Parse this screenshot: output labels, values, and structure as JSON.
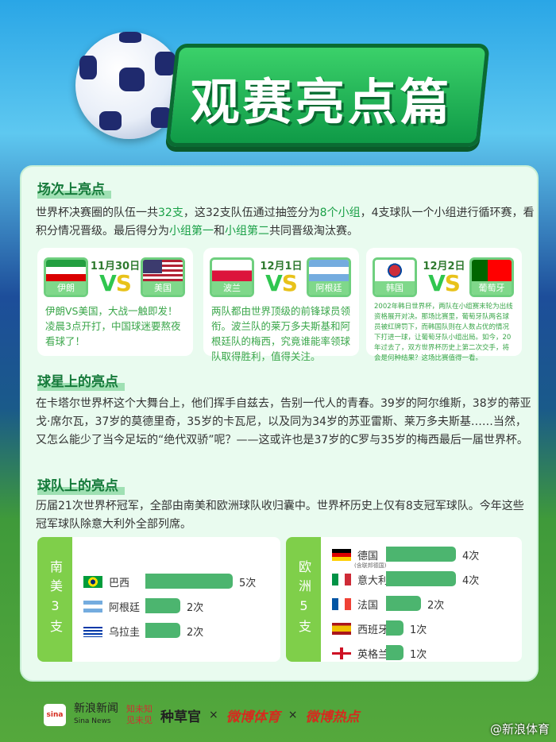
{
  "title": "观赛亮点篇",
  "sections": {
    "matches": {
      "heading": "场次上亮点",
      "intro": [
        "世界杯决赛圈的队伍一共",
        "32支",
        "，这32支队伍通过抽签分为",
        "8个小组",
        "，4支球队一个小组进行循环赛，看积分情况晋级。最后得分为",
        "小组第一",
        "和",
        "小组第二",
        "共同晋级淘汰赛。"
      ],
      "cards": [
        {
          "date": "11月30日",
          "vs": [
            "V",
            "S"
          ],
          "team1": "伊朗",
          "team2": "美国",
          "text": "伊朗VS美国，大战一触即发！凌晨3点开打，中国球迷要熬夜看球了！"
        },
        {
          "date": "12月1日",
          "vs": [
            "V",
            "S"
          ],
          "team1": "波兰",
          "team2": "阿根廷",
          "text": "两队都由世界顶级的前锋球员领衔。波兰队的莱万多夫斯基和阿根廷队的梅西，究竟谁能率领球队取得胜利，值得关注。"
        },
        {
          "date": "12月2日",
          "vs": [
            "V",
            "S"
          ],
          "team1": "韩国",
          "team2": "葡萄牙",
          "text": "2002年韩日世界杯，两队在小组赛末轮为出线资格展开对决。那场比赛里，葡萄牙队两名球员被红牌罚下，而韩国队则在人数占优的情况下打进一球，让葡萄牙队小组出局。如今，20年过去了，双方世界杯历史上第二次交手，将会是何种结果？这场比赛值得一看。"
        }
      ]
    },
    "stars": {
      "heading": "球星上的亮点",
      "text": "在卡塔尔世界杯这个大舞台上，他们挥手自兹去，告别一代人的青春。39岁的阿尔维斯，38岁的蒂亚戈·席尔瓦，37岁的莫德里奇，35岁的卡瓦尼，以及同为34岁的苏亚雷斯、莱万多夫斯基……当然，又怎么能少了当今足坛的“绝代双骄”呢？——这或许也是37岁的C罗与35岁的梅西最后一届世界杯。"
    },
    "teams": {
      "heading": "球队上的亮点",
      "text": "历届21次世界杯冠军，全部由南美和欧洲球队收归囊中。世界杯历史上仅有8支冠军球队。今年这些冠军球队除意大利外全部列席。"
    }
  },
  "chart_data": [
    {
      "type": "bar",
      "title": "南美3支",
      "categories": [
        "巴西",
        "阿根廷",
        "乌拉圭"
      ],
      "values": [
        5,
        2,
        2
      ],
      "labels": [
        "5次",
        "2次",
        "2次"
      ]
    },
    {
      "type": "bar",
      "title": "欧洲5支",
      "categories": [
        "德国",
        "意大利",
        "法国",
        "西班牙",
        "英格兰"
      ],
      "values": [
        4,
        4,
        2,
        1,
        1
      ],
      "labels": [
        "4次",
        "4次",
        "2次",
        "1次",
        "1次"
      ],
      "notes": {
        "德国": "(含联邦德国)"
      }
    }
  ],
  "groups": {
    "sa_label": [
      "南",
      "美",
      "3",
      "支"
    ],
    "eu_label": [
      "欧",
      "洲",
      "5",
      "支"
    ]
  },
  "colors": {
    "bar": "#4cb56f",
    "accent": "#1aa047",
    "panel": "#e9fbef"
  },
  "footer": {
    "sina": "新浪新闻",
    "sina_en": "Sina News",
    "zhi": "知未知",
    "jian": "见未见",
    "zhongcao": "种草官",
    "x": "×",
    "weibo_sports": "微博体育",
    "weibo_hot": "微博热点",
    "watermark": "@新浪体育"
  }
}
